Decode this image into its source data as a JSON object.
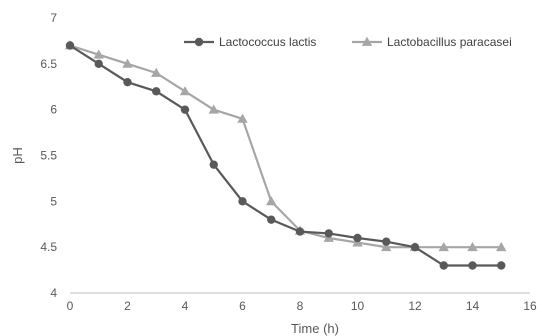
{
  "chart_data": {
    "type": "line",
    "xlabel": "Time (h)",
    "ylabel": "pH",
    "xlim": [
      0,
      16
    ],
    "ylim": [
      4,
      7
    ],
    "x_ticks": [
      "0",
      "2",
      "4",
      "6",
      "8",
      "10",
      "12",
      "14",
      "16"
    ],
    "y_ticks": [
      "4",
      "4.5",
      "5",
      "5.5",
      "6",
      "6.5",
      "7"
    ],
    "grid": false,
    "legend_position": "top-right",
    "series": [
      {
        "name": "Lactococcus lactis",
        "color": "#595959",
        "marker": "circle",
        "x": [
          0,
          1,
          2,
          3,
          4,
          5,
          6,
          7,
          8,
          9,
          10,
          11,
          12,
          13,
          14,
          15
        ],
        "y": [
          6.7,
          6.5,
          6.3,
          6.2,
          6.0,
          5.4,
          5.0,
          4.8,
          4.67,
          4.65,
          4.6,
          4.56,
          4.5,
          4.3,
          4.3,
          4.3
        ]
      },
      {
        "name": "Lactobacillus paracasei",
        "color": "#a6a6a6",
        "marker": "triangle",
        "x": [
          0,
          1,
          2,
          3,
          4,
          5,
          6,
          7,
          8,
          9,
          10,
          11,
          12,
          13,
          14,
          15
        ],
        "y": [
          6.7,
          6.6,
          6.5,
          6.4,
          6.2,
          6.0,
          5.9,
          5.0,
          4.68,
          4.6,
          4.55,
          4.5,
          4.5,
          4.5,
          4.5,
          4.5
        ]
      }
    ]
  }
}
